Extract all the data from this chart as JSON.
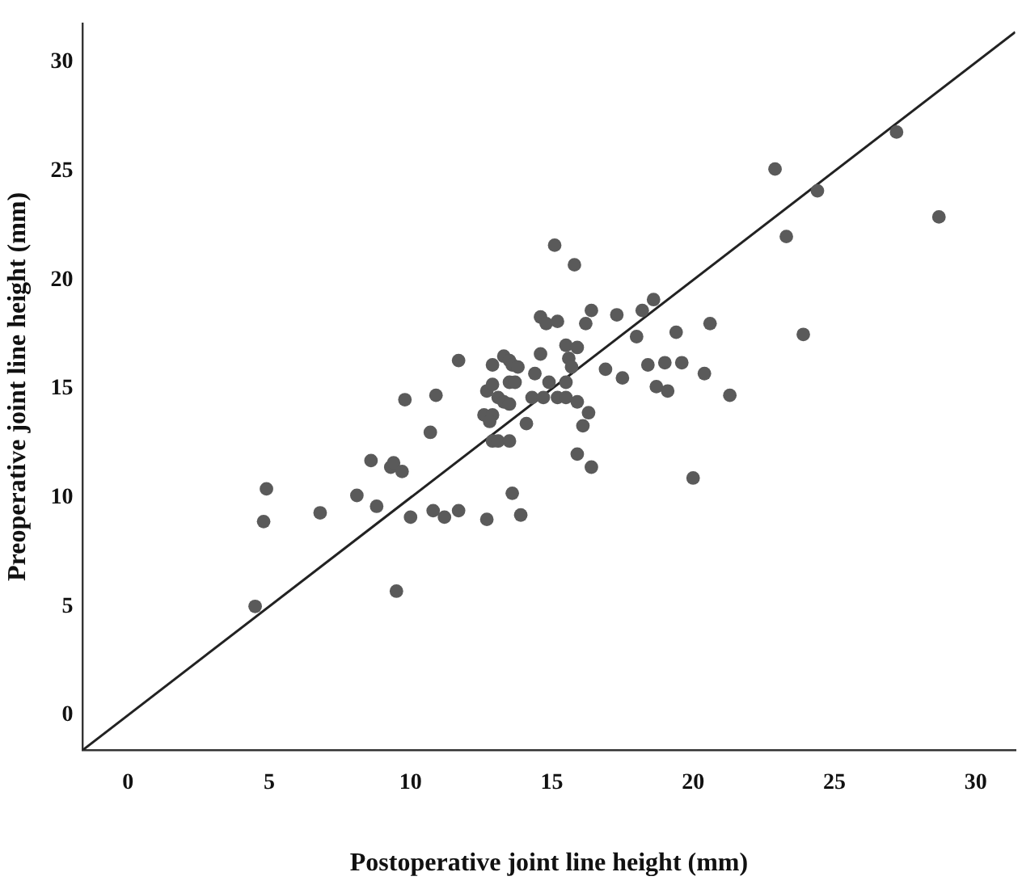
{
  "chart_data": {
    "type": "scatter",
    "xlabel": "Postoperative joint line height (mm)",
    "ylabel": "Preoperative joint line height (mm)",
    "xlim": [
      -1.6,
      31.4
    ],
    "ylim": [
      -1.6,
      31.8
    ],
    "xticks": [
      0,
      5,
      10,
      15,
      20,
      25,
      30
    ],
    "yticks": [
      0,
      5,
      10,
      15,
      20,
      25,
      30
    ],
    "grid": false,
    "legend": false,
    "marker": "circle",
    "series": [
      {
        "type": "scatter",
        "color": "#5a5a5a",
        "x": [
          4.5,
          4.9,
          4.8,
          6.8,
          8.1,
          8.6,
          8.8,
          9.3,
          9.4,
          9.7,
          9.8,
          9.5,
          10.0,
          10.7,
          10.9,
          10.8,
          11.2,
          11.7,
          11.7,
          12.7,
          12.7,
          12.6,
          12.9,
          12.8,
          12.9,
          12.9,
          12.9,
          13.1,
          13.1,
          13.3,
          13.3,
          13.5,
          13.5,
          13.5,
          13.5,
          13.7,
          13.6,
          13.8,
          13.6,
          13.9,
          14.1,
          14.3,
          14.4,
          14.6,
          14.6,
          14.8,
          14.7,
          14.9,
          15.1,
          15.2,
          15.2,
          15.5,
          15.5,
          15.5,
          15.6,
          15.7,
          15.8,
          15.9,
          15.9,
          15.9,
          16.1,
          16.2,
          16.3,
          16.4,
          16.4,
          16.9,
          17.3,
          17.5,
          18.0,
          18.2,
          18.4,
          18.6,
          18.7,
          19.0,
          19.1,
          19.4,
          19.6,
          20.0,
          20.4,
          20.6,
          21.3,
          22.9,
          23.3,
          23.9,
          24.4,
          27.2,
          28.7
        ],
        "values": [
          5.0,
          10.4,
          8.9,
          9.3,
          10.1,
          11.7,
          9.6,
          11.4,
          11.6,
          11.2,
          14.5,
          5.7,
          9.1,
          13.0,
          14.7,
          9.4,
          9.1,
          9.4,
          16.3,
          9.0,
          14.9,
          13.8,
          13.8,
          13.5,
          16.1,
          15.2,
          12.6,
          12.6,
          14.6,
          14.4,
          16.5,
          16.3,
          14.3,
          12.6,
          15.3,
          15.3,
          16.1,
          16.0,
          10.2,
          9.2,
          13.4,
          14.6,
          15.7,
          16.6,
          18.3,
          18.0,
          14.6,
          15.3,
          21.6,
          18.1,
          14.6,
          17.0,
          15.3,
          14.6,
          16.4,
          16.0,
          20.7,
          16.9,
          14.4,
          12.0,
          13.3,
          18.0,
          13.9,
          18.6,
          11.4,
          15.9,
          18.4,
          15.5,
          17.4,
          18.6,
          16.1,
          19.1,
          15.1,
          16.2,
          14.9,
          17.6,
          16.2,
          10.9,
          15.7,
          18.0,
          14.7,
          25.1,
          22.0,
          17.5,
          24.1,
          26.8,
          22.9
        ]
      },
      {
        "type": "line",
        "color": "#222222",
        "marker": "none",
        "line_style": "solid",
        "x": [
          -1.6,
          31.4
        ],
        "values": [
          -1.6,
          31.4
        ]
      }
    ]
  }
}
